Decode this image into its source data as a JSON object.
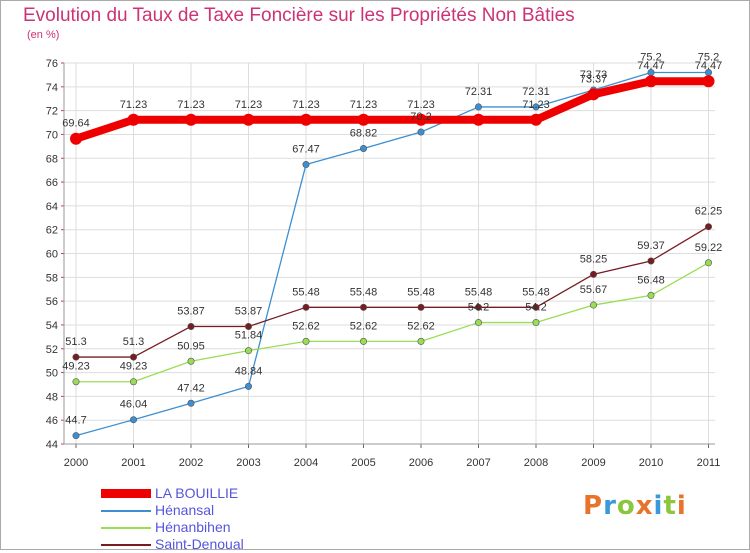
{
  "title": "Evolution du Taux de Taxe Foncière sur les Propriétés Non Bâties",
  "unit": "(en %)",
  "logo": "Proxiti",
  "logo_colors": [
    "#e8732a",
    "#3a9ad9",
    "#8cc63f",
    "#e8732a",
    "#3a9ad9",
    "#8cc63f",
    "#e8732a"
  ],
  "chart_data": {
    "type": "line",
    "title": "Evolution du Taux de Taxe Foncière sur les Propriétés Non Bâties",
    "ylabel": "(en %)",
    "xlabel": "",
    "ylim": [
      44,
      76
    ],
    "y_ticks": [
      44,
      46,
      48,
      50,
      52,
      54,
      56,
      58,
      60,
      62,
      64,
      66,
      68,
      70,
      72,
      74,
      76
    ],
    "categories": [
      "2000",
      "2001",
      "2002",
      "2003",
      "2004",
      "2005",
      "2006",
      "2007",
      "2008",
      "2009",
      "2010",
      "2011"
    ],
    "legend_position": "bottom-left",
    "series": [
      {
        "name": "LA BOUILLIE",
        "color": "#ee0000",
        "values": [
          69.64,
          71.23,
          71.23,
          71.23,
          71.23,
          71.23,
          71.23,
          71.23,
          71.23,
          73.37,
          74.47,
          74.47
        ],
        "labels": [
          "69.64",
          "71.23",
          "71.23",
          "71.23",
          "71.23",
          "71.23",
          "71.23",
          "",
          "71.23",
          "73.37",
          "74.47",
          "74.47"
        ]
      },
      {
        "name": "Hénansal",
        "color": "#3d8fd1",
        "values": [
          44.7,
          46.04,
          47.42,
          48.84,
          67.47,
          68.82,
          70.2,
          72.31,
          72.31,
          73.73,
          75.2,
          75.2
        ],
        "labels": [
          "44.7",
          "46.04",
          "47.42",
          "48.84",
          "67.47",
          "68.82",
          "70.2",
          "72.31",
          "72.31",
          "73.73",
          "75.2",
          "75.2"
        ]
      },
      {
        "name": "Hénanbihen",
        "color": "#99dd55",
        "values": [
          49.23,
          49.23,
          50.95,
          51.84,
          52.62,
          52.62,
          52.62,
          54.2,
          54.2,
          55.67,
          56.48,
          59.22
        ],
        "labels": [
          "49.23",
          "49.23",
          "50.95",
          "51.84",
          "52.62",
          "52.62",
          "52.62",
          "54.2",
          "54.2",
          "55.67",
          "56.48",
          "59.22"
        ]
      },
      {
        "name": "Saint-Denoual",
        "color": "#771d22",
        "values": [
          51.3,
          51.3,
          53.87,
          53.87,
          55.48,
          55.48,
          55.48,
          55.48,
          55.48,
          58.25,
          59.37,
          62.25
        ],
        "labels": [
          "51.3",
          "51.3",
          "53.87",
          "53.87",
          "55.48",
          "55.48",
          "55.48",
          "55.48",
          "55.48",
          "58.25",
          "59.37",
          "62.25"
        ]
      }
    ]
  }
}
